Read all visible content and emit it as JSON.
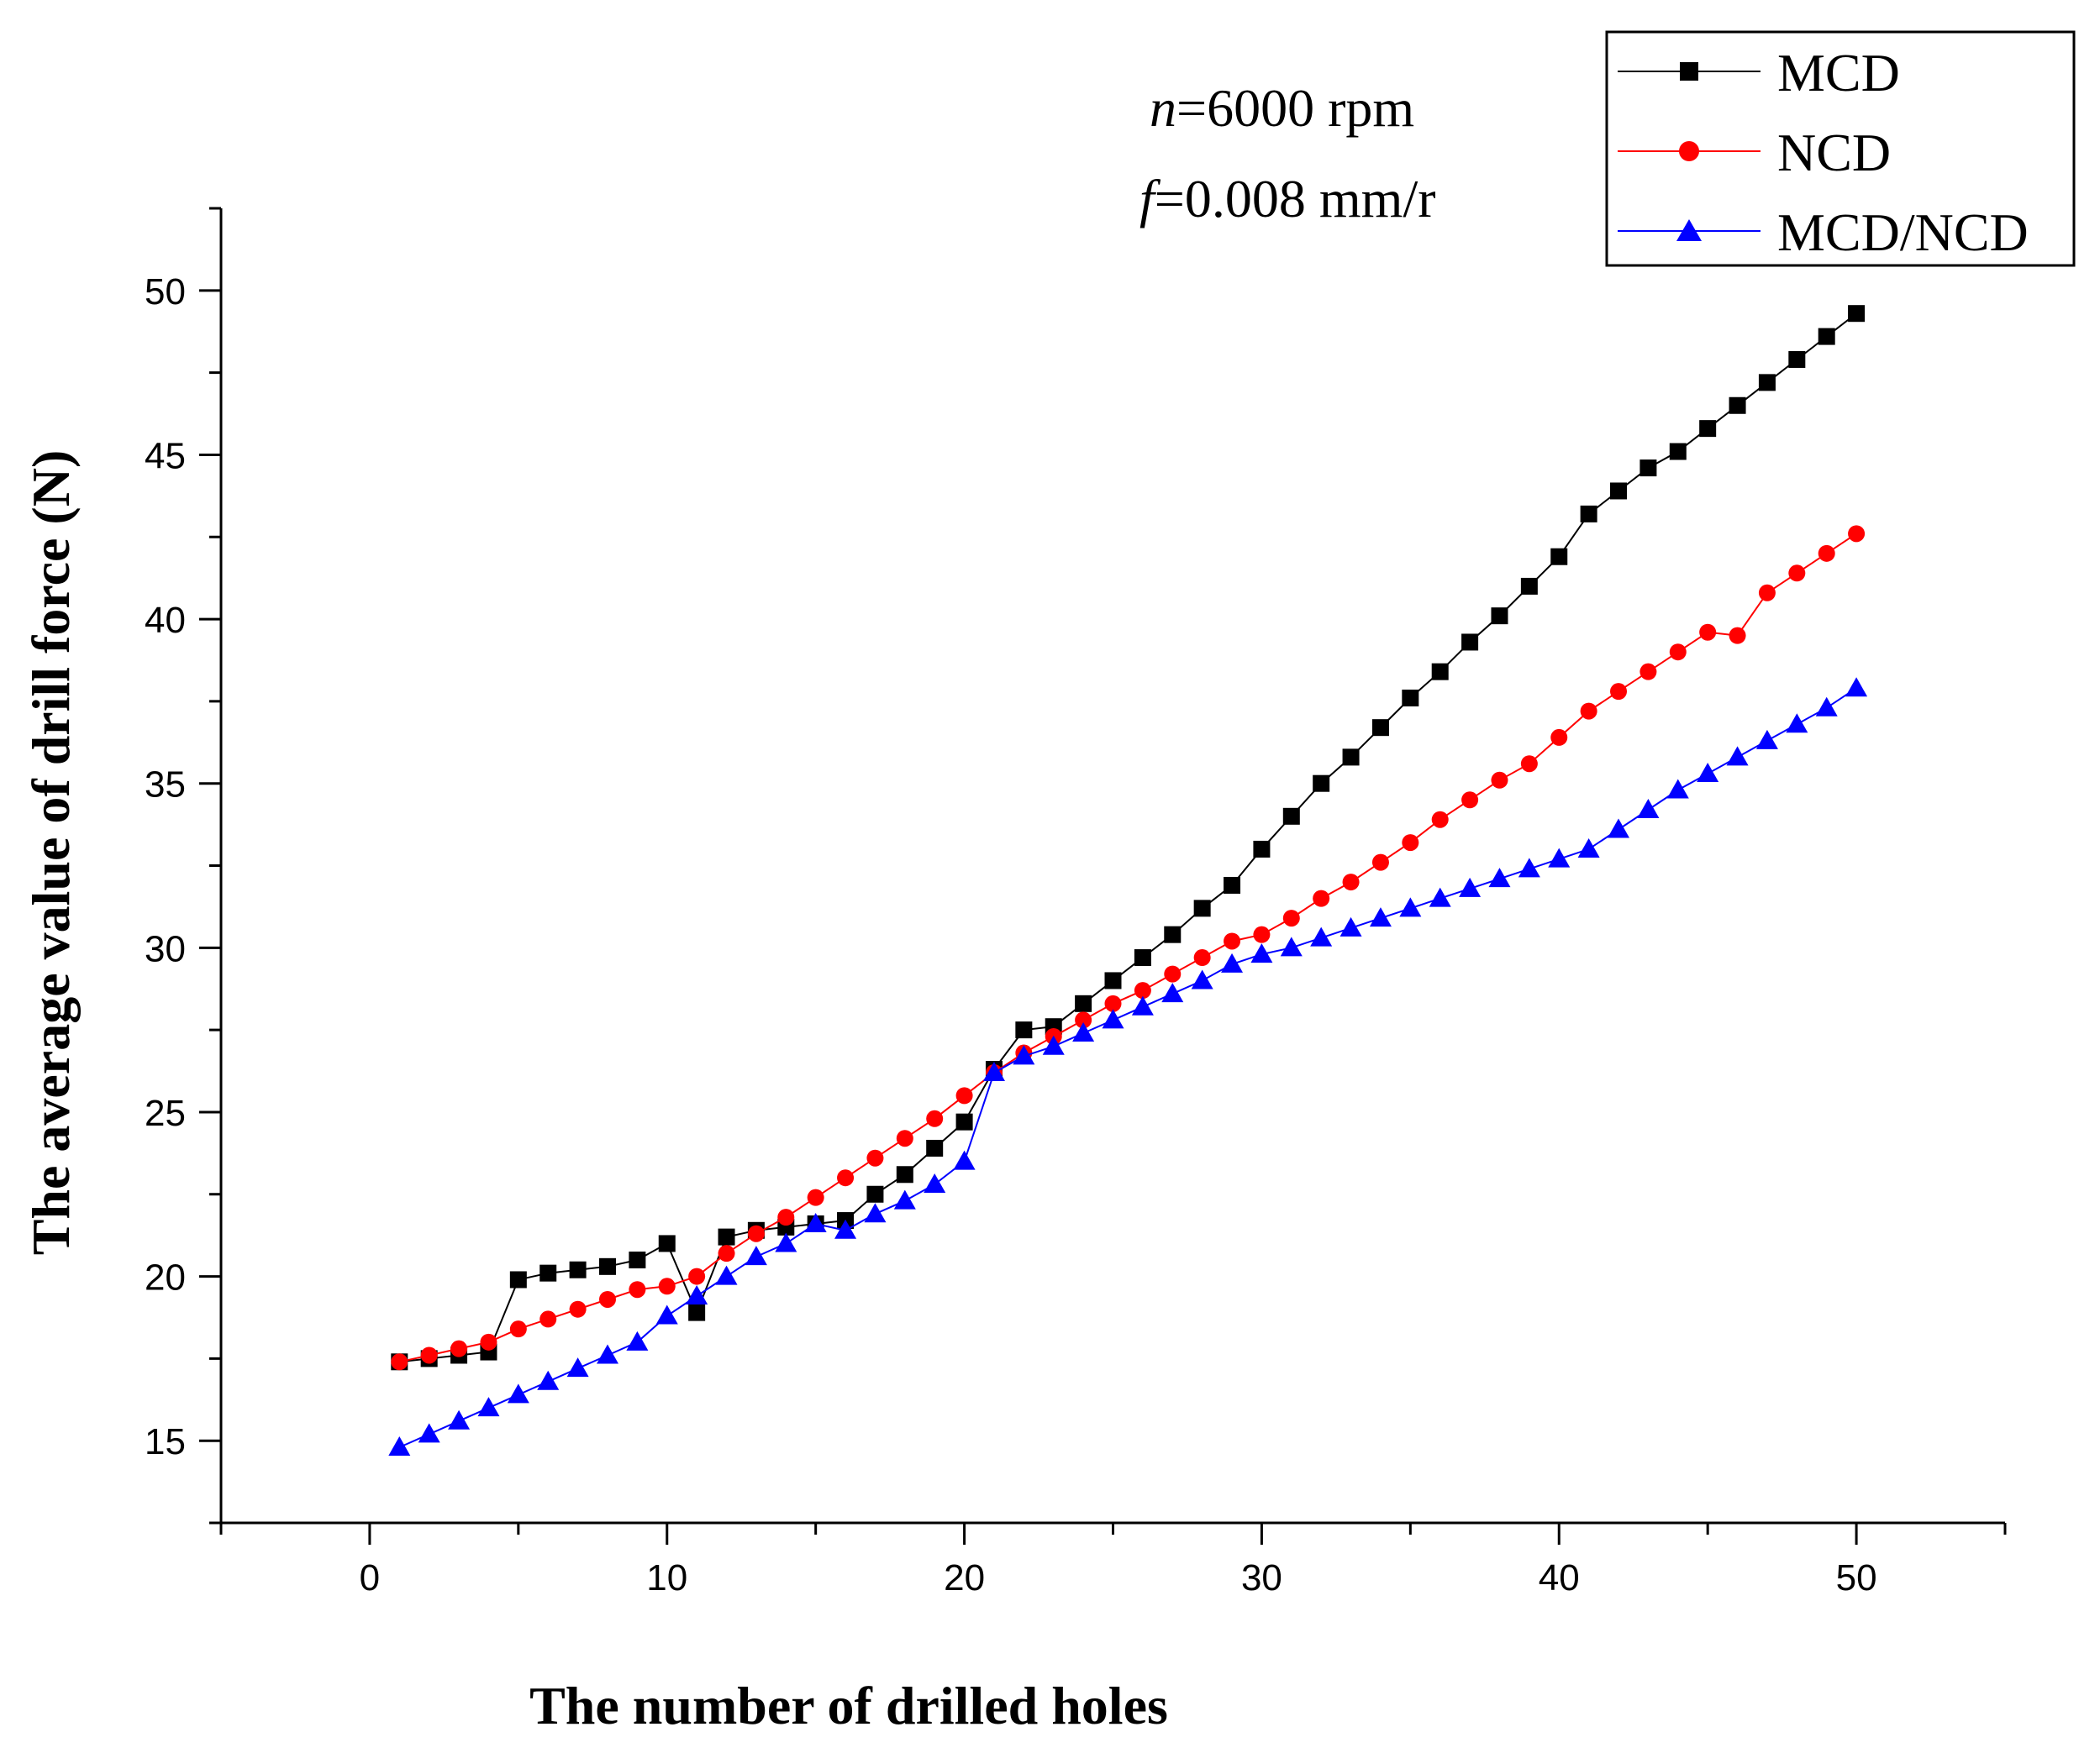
{
  "chart_data": {
    "type": "line",
    "title": "",
    "xlabel": "The number of drilled holes",
    "ylabel": "The average value of drill force (N)",
    "xlim": [
      -5,
      55
    ],
    "ylim": [
      12.5,
      52.5
    ],
    "xticks": [
      0,
      10,
      20,
      30,
      40,
      50
    ],
    "yticks": [
      15,
      20,
      25,
      30,
      35,
      40,
      45,
      50
    ],
    "x": [
      1,
      2,
      3,
      4,
      5,
      6,
      7,
      8,
      9,
      10,
      11,
      12,
      13,
      14,
      15,
      16,
      17,
      18,
      19,
      20,
      21,
      22,
      23,
      24,
      25,
      26,
      27,
      28,
      29,
      30,
      31,
      32,
      33,
      34,
      35,
      36,
      37,
      38,
      39,
      40,
      41,
      42,
      43,
      44,
      45,
      46,
      47,
      48,
      49,
      50
    ],
    "series": [
      {
        "name": "MCD",
        "color": "#000000",
        "marker": "square",
        "values": [
          17.4,
          17.5,
          17.6,
          17.7,
          19.9,
          20.1,
          20.2,
          20.3,
          20.5,
          21.0,
          18.9,
          21.2,
          21.4,
          21.5,
          21.6,
          21.7,
          22.5,
          23.1,
          23.9,
          24.7,
          26.3,
          27.5,
          27.6,
          28.3,
          29.0,
          29.7,
          30.4,
          31.2,
          31.9,
          33.0,
          34.0,
          35.0,
          35.8,
          36.7,
          37.6,
          38.4,
          39.3,
          40.1,
          41.0,
          41.9,
          43.2,
          43.9,
          44.6,
          45.1,
          45.8,
          46.5,
          47.2,
          47.9,
          48.6,
          49.3
        ]
      },
      {
        "name": "NCD",
        "color": "#ff0000",
        "marker": "circle",
        "values": [
          17.4,
          17.6,
          17.8,
          18.0,
          18.4,
          18.7,
          19.0,
          19.3,
          19.6,
          19.7,
          20.0,
          20.7,
          21.3,
          21.8,
          22.4,
          23.0,
          23.6,
          24.2,
          24.8,
          25.5,
          26.2,
          26.8,
          27.3,
          27.8,
          28.3,
          28.7,
          29.2,
          29.7,
          30.2,
          30.4,
          30.9,
          31.5,
          32.0,
          32.6,
          33.2,
          33.9,
          34.5,
          35.1,
          35.6,
          36.4,
          37.2,
          37.8,
          38.4,
          39.0,
          39.6,
          39.5,
          40.8,
          41.4,
          42.0,
          42.6
        ]
      },
      {
        "name": "MCD/NCD",
        "color": "#0000ff",
        "marker": "triangle",
        "values": [
          14.8,
          15.2,
          15.6,
          16.0,
          16.4,
          16.8,
          17.2,
          17.6,
          18.0,
          18.8,
          19.4,
          20.0,
          20.6,
          21.0,
          21.6,
          21.4,
          21.9,
          22.3,
          22.8,
          23.5,
          26.2,
          26.7,
          27.0,
          27.4,
          27.8,
          28.2,
          28.6,
          29.0,
          29.5,
          29.8,
          30.0,
          30.3,
          30.6,
          30.9,
          31.2,
          31.5,
          31.8,
          32.1,
          32.4,
          32.7,
          33.0,
          33.6,
          34.2,
          34.8,
          35.3,
          35.8,
          36.3,
          36.8,
          37.3,
          37.9
        ]
      }
    ],
    "legend": "top-right",
    "annotations": [
      "n=6000 rpm",
      "f=0.008 mm/r"
    ]
  },
  "annotation": {
    "rpm_var": "n",
    "rpm_rest": "=6000 rpm",
    "feed_var": "f",
    "feed_rest": "=0.008 mm/r"
  }
}
